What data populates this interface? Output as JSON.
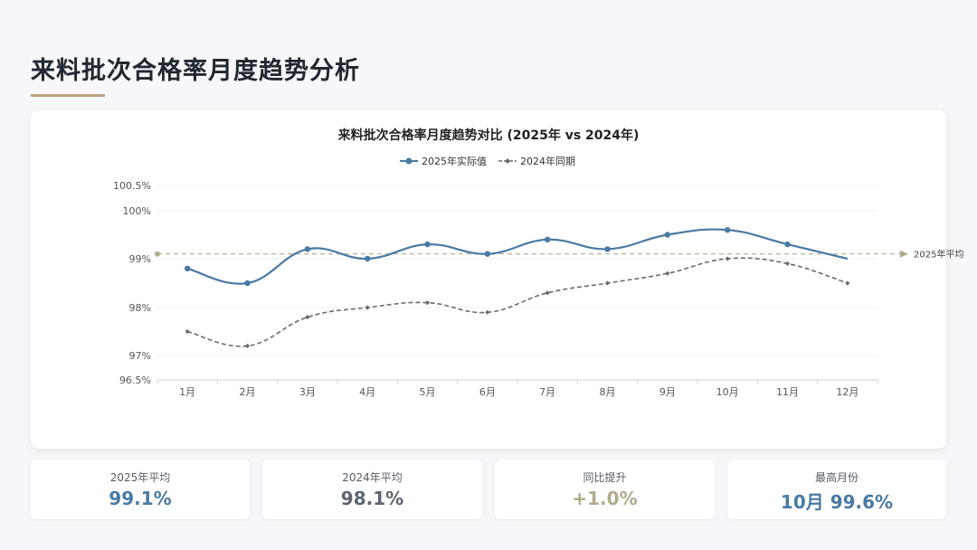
{
  "page": {
    "title": "来料批次合格率月度趋势分析"
  },
  "chart_data": {
    "type": "line",
    "title": "来料批次合格率月度趋势对比 (2025年 vs 2024年)",
    "categories": [
      "1月",
      "2月",
      "3月",
      "4月",
      "5月",
      "6月",
      "7月",
      "8月",
      "9月",
      "10月",
      "11月",
      "12月"
    ],
    "series": [
      {
        "name": "2025年实际值",
        "values": [
          98.8,
          98.5,
          99.2,
          99.0,
          99.3,
          99.1,
          99.4,
          99.2,
          99.5,
          99.6,
          99.3,
          99.0
        ],
        "color": "#4a7aa3",
        "style": "solid"
      },
      {
        "name": "2024年同期",
        "values": [
          97.5,
          97.2,
          97.8,
          98.0,
          98.1,
          97.9,
          98.3,
          98.5,
          98.7,
          99.0,
          98.9,
          98.5
        ],
        "color": "#6b6b6b",
        "style": "dashed"
      }
    ],
    "reference_line": {
      "label": "2025年平均",
      "value": 99.1,
      "color": "#b0ad8f"
    },
    "y_ticks": [
      "96.5%",
      "97%",
      "98%",
      "99%",
      "100%",
      "100.5%"
    ],
    "y_tick_values": [
      96.5,
      97,
      98,
      99,
      100,
      100.5
    ],
    "ylim": [
      96.5,
      100.5
    ],
    "legend_position": "top-center",
    "grid": true
  },
  "stats": [
    {
      "label": "2025年平均",
      "value": "99.1%",
      "color": "#4a7aa3"
    },
    {
      "label": "2024年平均",
      "value": "98.1%",
      "color": "#5d6670"
    },
    {
      "label": "同比提升",
      "value": "+1.0%",
      "color": "#b0ab8a"
    },
    {
      "label": "最高月份",
      "value": "10月 99.6%",
      "color": "#4a7aa3"
    }
  ]
}
